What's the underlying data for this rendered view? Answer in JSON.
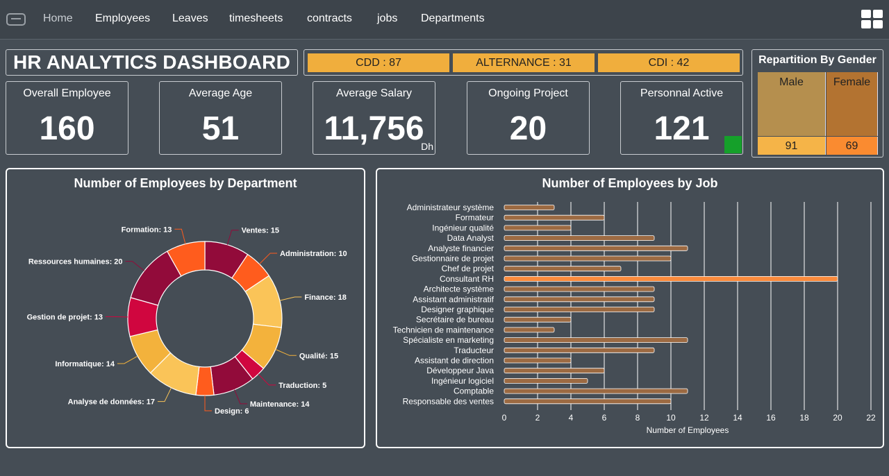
{
  "nav": {
    "items": [
      "Home",
      "Employees",
      "Leaves",
      "timesheets",
      "contracts",
      "jobs",
      "Departments"
    ]
  },
  "header": {
    "title": "HR ANALYTICS DASHBOARD"
  },
  "contracts": [
    "CDD : 87",
    "ALTERNANCE : 31",
    "CDI : 42"
  ],
  "kpis": [
    {
      "label": "Overall Employee",
      "value": "160"
    },
    {
      "label": "Average Age",
      "value": "51"
    },
    {
      "label": "Average Salary",
      "value": "11,756",
      "unit": "Dh"
    },
    {
      "label": "Ongoing Project",
      "value": "20"
    },
    {
      "label": "Personnal Active",
      "value": "121"
    }
  ],
  "gender": {
    "title": "Repartition By Gender",
    "male_label": "Male",
    "female_label": "Female",
    "male_count": "91",
    "female_count": "69",
    "male": 91,
    "female": 69,
    "colors": {
      "male_top": "#b58f4e",
      "female_top": "#b37331",
      "male_bottom": "#f5b448",
      "female_bottom": "#fa8b30"
    }
  },
  "dept_chart": {
    "title": "Number of Employees by Department",
    "chart_data": {
      "type": "pie",
      "title": "Number of Employees by Department",
      "slices": [
        {
          "label": "Ventes",
          "value": 15,
          "color": "#920b3a"
        },
        {
          "label": "Administration",
          "value": 10,
          "color": "#ff5c1d"
        },
        {
          "label": "Finance",
          "value": 18,
          "color": "#fac458"
        },
        {
          "label": "Qualité",
          "value": 15,
          "color": "#f3b23c"
        },
        {
          "label": "Traduction",
          "value": 5,
          "color": "#d0063f"
        },
        {
          "label": "Maintenance",
          "value": 14,
          "color": "#920b3a"
        },
        {
          "label": "Design",
          "value": 6,
          "color": "#ff5c1d"
        },
        {
          "label": "Analyse de données",
          "value": 17,
          "color": "#fac458"
        },
        {
          "label": "Informatique",
          "value": 14,
          "color": "#f3b23c"
        },
        {
          "label": "Gestion de projet",
          "value": 13,
          "color": "#d0063f"
        },
        {
          "label": "Ressources humaines",
          "value": 20,
          "color": "#920b3a"
        },
        {
          "label": "Formation",
          "value": 13,
          "color": "#ff5c1d"
        }
      ],
      "label_texts": [
        "Ventes: 15",
        "Administration: 10",
        "Finance: 18",
        "Qualité: 15",
        "Traduction: 5",
        "Maintenance: 14",
        "Design: 6",
        "Analyse de données: 17",
        "Informatique: 14",
        "Gestion de projet: 13",
        "Ressources humaines: 20",
        "Formation: 13"
      ]
    }
  },
  "job_chart": {
    "title": "Number of Employees by Job",
    "chart_data": {
      "type": "bar",
      "orientation": "horizontal",
      "title": "Number of Employees by Job",
      "categories": [
        "Administrateur système",
        "Formateur",
        "Ingénieur qualité",
        "Data Analyst",
        "Analyste financier",
        "Gestionnaire de projet",
        "Chef de projet",
        "Consultant RH",
        "Architecte système",
        "Assistant administratif",
        "Designer graphique",
        "Secrétaire de bureau",
        "Technicien de maintenance",
        "Spécialiste en marketing",
        "Traducteur",
        "Assistant de direction",
        "Développeur Java",
        "Ingénieur logiciel",
        "Comptable",
        "Responsable des ventes"
      ],
      "values": [
        3,
        6,
        4,
        9,
        11,
        10,
        7,
        20,
        9,
        9,
        9,
        4,
        3,
        11,
        9,
        4,
        6,
        5,
        11,
        10
      ],
      "xlabel": "Number of Employees",
      "xlim": [
        0,
        22
      ],
      "xticks": [
        "0",
        "2",
        "4",
        "6",
        "8",
        "10",
        "12",
        "14",
        "16",
        "18",
        "20",
        "22"
      ],
      "bar_color": "#9c6a42",
      "highlight_color": "#fa8a3c",
      "highlight_index": 7
    }
  }
}
